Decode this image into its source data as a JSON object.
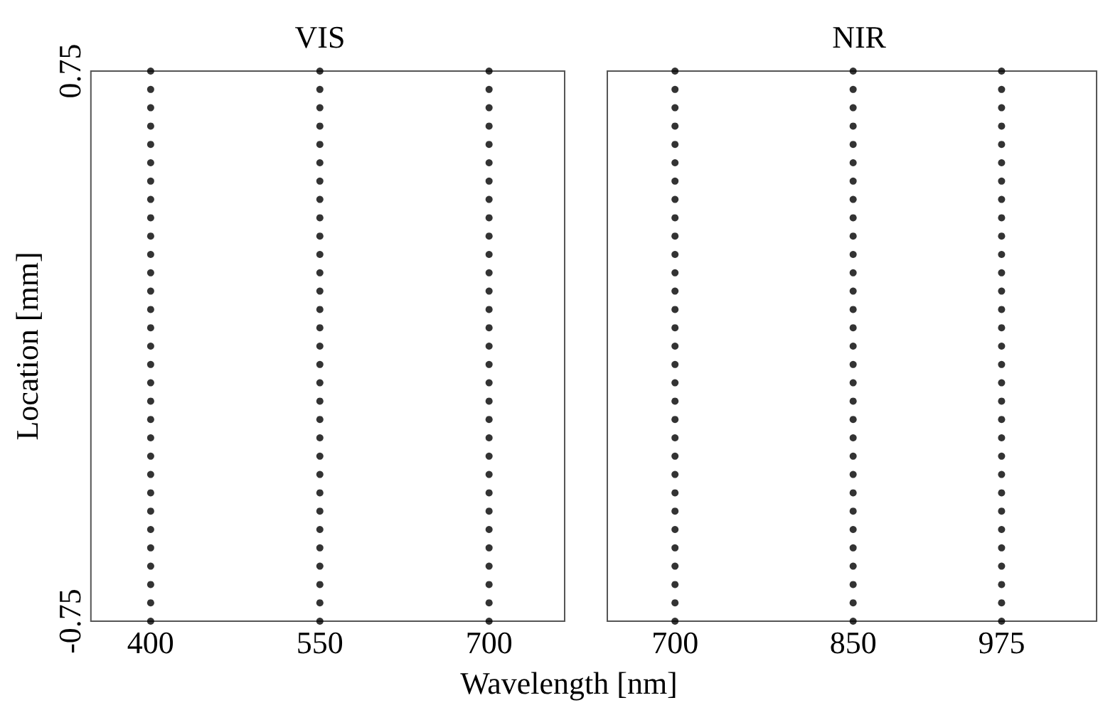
{
  "chart_data": [
    {
      "type": "scatter",
      "title": "VIS",
      "ylabel": "Location [mm]",
      "xlabel": "Wavelength [nm]",
      "xlim": [
        347,
        767
      ],
      "xticks": [
        400,
        550,
        700
      ],
      "ylim": [
        -0.75,
        0.75
      ],
      "yticks": [
        -0.75,
        0.75
      ],
      "marker": "circle",
      "series": [
        {
          "color": "#000000",
          "x": [
            400,
            400,
            400,
            400,
            400,
            400,
            400,
            400,
            400,
            400,
            400,
            400,
            400,
            400,
            400,
            400,
            400,
            400,
            400,
            400,
            400,
            400,
            400,
            400,
            400,
            400,
            400,
            400,
            400,
            400,
            400
          ],
          "values": [
            -0.75,
            -0.7,
            -0.65,
            -0.6,
            -0.55,
            -0.5,
            -0.45,
            -0.4,
            -0.35,
            -0.3,
            -0.25,
            -0.2,
            -0.15,
            -0.1,
            -0.05,
            0,
            0.05,
            0.1,
            0.15,
            0.2,
            0.25,
            0.3,
            0.35,
            0.4,
            0.45,
            0.5,
            0.55,
            0.6,
            0.65,
            0.7,
            0.75
          ]
        },
        {
          "color": "#000000",
          "x": [
            550,
            550,
            550,
            550,
            550,
            550,
            550,
            550,
            550,
            550,
            550,
            550,
            550,
            550,
            550,
            550,
            550,
            550,
            550,
            550,
            550,
            550,
            550,
            550,
            550,
            550,
            550,
            550,
            550,
            550,
            550
          ],
          "values": [
            -0.75,
            -0.7,
            -0.65,
            -0.6,
            -0.55,
            -0.5,
            -0.45,
            -0.4,
            -0.35,
            -0.3,
            -0.25,
            -0.2,
            -0.15,
            -0.1,
            -0.05,
            0,
            0.05,
            0.1,
            0.15,
            0.2,
            0.25,
            0.3,
            0.35,
            0.4,
            0.45,
            0.5,
            0.55,
            0.6,
            0.65,
            0.7,
            0.75
          ]
        },
        {
          "color": "#000000",
          "x": [
            700,
            700,
            700,
            700,
            700,
            700,
            700,
            700,
            700,
            700,
            700,
            700,
            700,
            700,
            700,
            700,
            700,
            700,
            700,
            700,
            700,
            700,
            700,
            700,
            700,
            700,
            700,
            700,
            700,
            700,
            700
          ],
          "values": [
            -0.75,
            -0.7,
            -0.65,
            -0.6,
            -0.55,
            -0.5,
            -0.45,
            -0.4,
            -0.35,
            -0.3,
            -0.25,
            -0.2,
            -0.15,
            -0.1,
            -0.05,
            0,
            0.05,
            0.1,
            0.15,
            0.2,
            0.25,
            0.3,
            0.35,
            0.4,
            0.45,
            0.5,
            0.55,
            0.6,
            0.65,
            0.7,
            0.75
          ]
        }
      ]
    },
    {
      "type": "scatter",
      "title": "NIR",
      "xlim": [
        643,
        1055
      ],
      "xticks": [
        700,
        850,
        975
      ],
      "ylim": [
        -0.75,
        0.75
      ],
      "tick_labels": "x",
      "marker": "circle",
      "series": [
        {
          "color": "#000000",
          "x": [
            700,
            700,
            700,
            700,
            700,
            700,
            700,
            700,
            700,
            700,
            700,
            700,
            700,
            700,
            700,
            700,
            700,
            700,
            700,
            700,
            700,
            700,
            700,
            700,
            700,
            700,
            700,
            700,
            700,
            700,
            700
          ],
          "values": [
            -0.75,
            -0.7,
            -0.65,
            -0.6,
            -0.55,
            -0.5,
            -0.45,
            -0.4,
            -0.35,
            -0.3,
            -0.25,
            -0.2,
            -0.15,
            -0.1,
            -0.05,
            0,
            0.05,
            0.1,
            0.15,
            0.2,
            0.25,
            0.3,
            0.35,
            0.4,
            0.45,
            0.5,
            0.55,
            0.6,
            0.65,
            0.7,
            0.75
          ]
        },
        {
          "color": "#000000",
          "x": [
            850,
            850,
            850,
            850,
            850,
            850,
            850,
            850,
            850,
            850,
            850,
            850,
            850,
            850,
            850,
            850,
            850,
            850,
            850,
            850,
            850,
            850,
            850,
            850,
            850,
            850,
            850,
            850,
            850,
            850,
            850
          ],
          "values": [
            -0.75,
            -0.7,
            -0.65,
            -0.6,
            -0.55,
            -0.5,
            -0.45,
            -0.4,
            -0.35,
            -0.3,
            -0.25,
            -0.2,
            -0.15,
            -0.1,
            -0.05,
            0,
            0.05,
            0.1,
            0.15,
            0.2,
            0.25,
            0.3,
            0.35,
            0.4,
            0.45,
            0.5,
            0.55,
            0.6,
            0.65,
            0.7,
            0.75
          ]
        },
        {
          "color": "#000000",
          "x": [
            975,
            975,
            975,
            975,
            975,
            975,
            975,
            975,
            975,
            975,
            975,
            975,
            975,
            975,
            975,
            975,
            975,
            975,
            975,
            975,
            975,
            975,
            975,
            975,
            975,
            975,
            975,
            975,
            975,
            975,
            975
          ],
          "values": [
            -0.75,
            -0.7,
            -0.65,
            -0.6,
            -0.55,
            -0.5,
            -0.45,
            -0.4,
            -0.35,
            -0.3,
            -0.25,
            -0.2,
            -0.15,
            -0.1,
            -0.05,
            0,
            0.05,
            0.1,
            0.15,
            0.2,
            0.25,
            0.3,
            0.35,
            0.4,
            0.45,
            0.5,
            0.55,
            0.6,
            0.65,
            0.7,
            0.75
          ]
        }
      ]
    }
  ]
}
